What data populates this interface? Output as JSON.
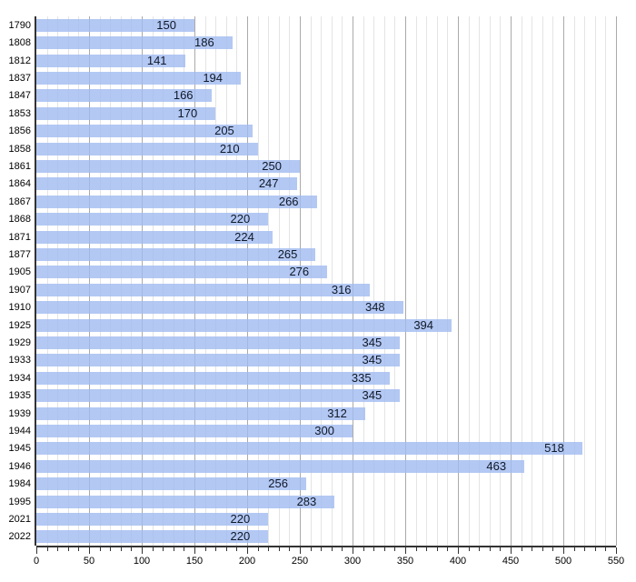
{
  "chart_data": {
    "type": "bar",
    "orientation": "horizontal",
    "title": "",
    "xlabel": "",
    "ylabel": "",
    "xlim": [
      0,
      550
    ],
    "x_tick_step_minor": 10,
    "x_tick_step_major": 50,
    "x_tick_labels": [
      "0",
      "50",
      "100",
      "150",
      "200",
      "250",
      "300",
      "350",
      "400",
      "450",
      "500",
      "550"
    ],
    "grid": "vertical minor every 10 (light), major every 50 (dark)",
    "legend_position": "none",
    "categories": [
      "1790",
      "1808",
      "1812",
      "1837",
      "1847",
      "1853",
      "1856",
      "1858",
      "1861",
      "1864",
      "1867",
      "1868",
      "1871",
      "1877",
      "1905",
      "1907",
      "1910",
      "1925",
      "1929",
      "1933",
      "1934",
      "1935",
      "1939",
      "1944",
      "1945",
      "1946",
      "1984",
      "1995",
      "2021",
      "2022"
    ],
    "values": [
      150,
      186,
      141,
      194,
      166,
      170,
      205,
      210,
      250,
      247,
      266,
      220,
      224,
      265,
      276,
      316,
      348,
      394,
      345,
      345,
      335,
      345,
      312,
      300,
      518,
      463,
      256,
      283,
      220,
      220
    ],
    "colors": {
      "bar_fill_rgba": "rgba(160,186,240,0.8)",
      "bar_fill_hex_on_white": "#b3c8f3",
      "value_label_text": "#101828",
      "year_label_text": "#000000",
      "axis": "#333333",
      "gridline_minor": "#e4e4e4",
      "gridline_major": "#aaaaaa"
    }
  }
}
